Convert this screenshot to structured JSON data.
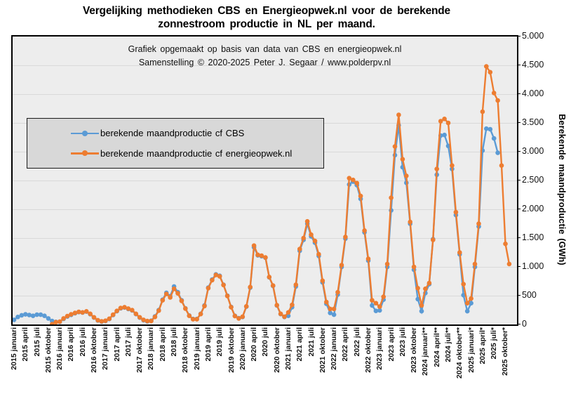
{
  "title": {
    "lines": [
      "Vergelijking  methodieken  CBS en Energieopwek.nl  voor de berekende",
      "zonnestroom productie in NL per maand."
    ]
  },
  "subtitle": {
    "lines": [
      "Grafiek  opgemaakt  op basis van data van CBS  en energieopwek.nl",
      "Samenstelling  © 2020-2025  Peter J. Segaar / www.polderpv.nl"
    ]
  },
  "legend": {
    "items": [
      {
        "label": "berekende maandproductie cf CBS",
        "color": "#5B9BD5"
      },
      {
        "label": "berekende maandproductie cf energieopwek.nl",
        "color": "#ED7D31"
      }
    ]
  },
  "colors": {
    "cbs_blue": "#5B9BD5",
    "energieopwek_orange": "#ED7D31",
    "plot_background": "#ededed",
    "legend_background": "#d8d8d8",
    "gridline": "#d9d9d9"
  },
  "chart_data": {
    "type": "line",
    "title": "Vergelijking methodieken CBS en Energieopwek.nl voor de berekende zonnestroom productie in NL per maand.",
    "ylabel": "Berekende  maandproductie  (GWh)",
    "ylim": [
      0,
      5000
    ],
    "y_tick_interval": 500,
    "y_tick_labels": [
      "0",
      "500",
      "1.000",
      "1.500",
      "2.000",
      "2.500",
      "3.000",
      "3.500",
      "4.000",
      "4.500",
      "5.000"
    ],
    "x_start_month": "2015 januari",
    "x_interval": "monthly",
    "x_tick_every_months": 3,
    "x_tick_labels": [
      "2015 januari",
      "2015 april",
      "2015 juli",
      "2015 oktober",
      "2016 januari",
      "2016 april",
      "2016 juli",
      "2016 oktober",
      "2017 januari",
      "2017 april",
      "2017 juli",
      "2017 oktober",
      "2018 januari",
      "2018 april",
      "2018 juli",
      "2018 oktober",
      "2019 januari",
      "2019 april",
      "2019 juli",
      "2019 oktober",
      "2020 januari",
      "2020 april",
      "2020 juli",
      "2020 oktober",
      "2021 januari",
      "2021 april",
      "2021 juli",
      "2021 oktober",
      "2022 januari",
      "2022 april",
      "2022 juli",
      "2022 oktober",
      "2023 januari",
      "2023 april",
      "2023 juli",
      "2023 oktober",
      "2024 januari**",
      "2024 april**",
      "2024 juli**",
      "2024 oktober**",
      "2025 januari*",
      "2025 april*",
      "2025 juli*",
      "2025 oktober*"
    ],
    "legend_position": "upper-left-box",
    "grid": "horizontal",
    "series": [
      {
        "name": "berekende maandproductie cf CBS",
        "color": "#5B9BD5",
        "values": [
          80,
          130,
          160,
          175,
          165,
          150,
          170,
          170,
          150,
          105,
          60,
          45,
          45,
          98,
          138,
          167,
          195,
          216,
          207,
          223,
          179,
          120,
          70,
          50,
          60,
          95,
          165,
          230,
          280,
          295,
          270,
          245,
          180,
          120,
          75,
          55,
          65,
          140,
          250,
          430,
          550,
          490,
          660,
          560,
          420,
          280,
          155,
          95,
          95,
          185,
          330,
          640,
          780,
          870,
          845,
          690,
          500,
          305,
          150,
          110,
          130,
          310,
          640,
          1340,
          1200,
          1185,
          1160,
          820,
          670,
          330,
          180,
          130,
          150,
          300,
          660,
          1280,
          1470,
          1750,
          1530,
          1420,
          1190,
          730,
          360,
          200,
          170,
          520,
          1000,
          1490,
          2430,
          2480,
          2420,
          2180,
          1600,
          1110,
          330,
          235,
          245,
          430,
          1000,
          1980,
          2940,
          3460,
          2730,
          2460,
          1750,
          950,
          440,
          230,
          545,
          700,
          1480,
          2600,
          3280,
          3290,
          3100,
          2700,
          1900,
          1220,
          510,
          230,
          370,
          1000,
          1700,
          3020,
          3400,
          3390,
          3230,
          2980,
          null,
          null,
          null
        ]
      },
      {
        "name": "berekende maandproductie cf energieopwek.nl",
        "color": "#ED7D31",
        "values": [
          null,
          null,
          null,
          null,
          null,
          null,
          null,
          null,
          null,
          null,
          5,
          40,
          50,
          105,
          145,
          175,
          200,
          220,
          210,
          228,
          185,
          125,
          75,
          55,
          65,
          100,
          170,
          235,
          285,
          300,
          275,
          250,
          185,
          125,
          80,
          60,
          60,
          130,
          240,
          420,
          530,
          470,
          620,
          540,
          410,
          275,
          150,
          90,
          90,
          180,
          320,
          630,
          770,
          860,
          835,
          685,
          495,
          300,
          145,
          105,
          135,
          315,
          650,
          1370,
          1210,
          1195,
          1165,
          825,
          675,
          335,
          185,
          135,
          210,
          340,
          690,
          1310,
          1500,
          1790,
          1560,
          1450,
          1220,
          760,
          390,
          270,
          270,
          560,
          1030,
          1520,
          2540,
          2510,
          2455,
          2230,
          1630,
          1140,
          420,
          370,
          310,
          480,
          1050,
          2200,
          3090,
          3640,
          2870,
          2580,
          1780,
          1000,
          630,
          330,
          620,
          720,
          1470,
          2700,
          3530,
          3570,
          3500,
          2760,
          1950,
          1250,
          700,
          370,
          450,
          1050,
          1750,
          3695,
          4480,
          4380,
          4020,
          3890,
          2760,
          1400,
          1050
        ]
      }
    ]
  }
}
